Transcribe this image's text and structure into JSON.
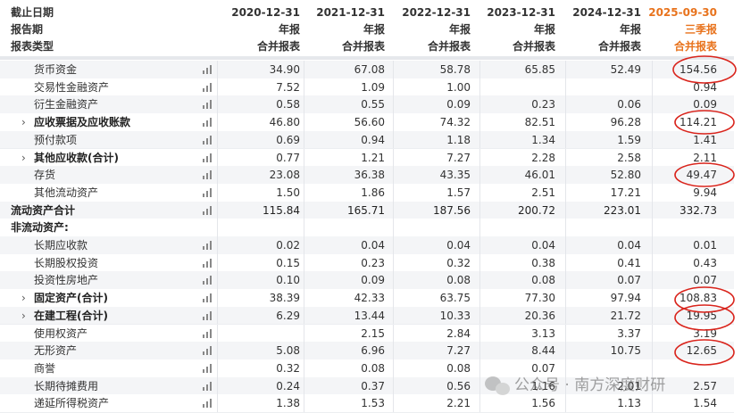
{
  "header": {
    "labels": [
      "截止日期",
      "报告期",
      "报表类型"
    ],
    "columns": [
      {
        "date": "2020-12-31",
        "period": "年报",
        "type": "合并报表"
      },
      {
        "date": "2021-12-31",
        "period": "年报",
        "type": "合并报表"
      },
      {
        "date": "2022-12-31",
        "period": "年报",
        "type": "合并报表"
      },
      {
        "date": "2023-12-31",
        "period": "年报",
        "type": "合并报表"
      },
      {
        "date": "2024-12-31",
        "period": "年报",
        "type": "合并报表"
      },
      {
        "date": "2025-09-30",
        "period": "三季报",
        "type": "合并报表"
      }
    ]
  },
  "table": {
    "rows": [
      {
        "label": "货币资金",
        "values": [
          "34.90",
          "67.08",
          "58.78",
          "65.85",
          "52.49",
          "154.56"
        ]
      },
      {
        "label": "交易性金融资产",
        "values": [
          "7.52",
          "1.09",
          "1.00",
          null,
          null,
          "0.94"
        ]
      },
      {
        "label": "衍生金融资产",
        "values": [
          "0.58",
          "0.55",
          "0.09",
          "0.23",
          "0.06",
          "0.09"
        ]
      },
      {
        "label": "应收票据及应收账款",
        "values": [
          "46.80",
          "56.60",
          "74.32",
          "82.51",
          "96.28",
          "114.21"
        ]
      },
      {
        "label": "预付款项",
        "values": [
          "0.69",
          "0.94",
          "1.18",
          "1.34",
          "1.59",
          "1.41"
        ]
      },
      {
        "label": "其他应收款(合计)",
        "values": [
          "0.77",
          "1.21",
          "7.27",
          "2.28",
          "2.58",
          "2.11"
        ]
      },
      {
        "label": "存货",
        "values": [
          "23.08",
          "36.38",
          "43.35",
          "46.01",
          "52.80",
          "49.47"
        ]
      },
      {
        "label": "其他流动资产",
        "values": [
          "1.50",
          "1.86",
          "1.57",
          "2.51",
          "17.21",
          "9.94"
        ]
      },
      {
        "label": "流动资产合计",
        "values": [
          "115.84",
          "165.71",
          "187.56",
          "200.72",
          "223.01",
          "332.73"
        ]
      },
      {
        "label": "非流动资产:",
        "values": [
          null,
          null,
          null,
          null,
          null,
          null
        ]
      },
      {
        "label": "长期应收款",
        "values": [
          "0.02",
          "0.04",
          "0.04",
          "0.04",
          "0.04",
          "0.01"
        ]
      },
      {
        "label": "长期股权投资",
        "values": [
          "0.15",
          "0.23",
          "0.32",
          "0.38",
          "0.41",
          "0.43"
        ]
      },
      {
        "label": "投资性房地产",
        "values": [
          "0.10",
          "0.09",
          "0.08",
          "0.08",
          "0.07",
          "0.07"
        ]
      },
      {
        "label": "固定资产(合计)",
        "values": [
          "38.39",
          "42.33",
          "63.75",
          "77.30",
          "97.94",
          "108.83"
        ]
      },
      {
        "label": "在建工程(合计)",
        "values": [
          "6.29",
          "13.44",
          "10.33",
          "20.36",
          "21.72",
          "19.95"
        ]
      },
      {
        "label": "使用权资产",
        "values": [
          null,
          "2.15",
          "2.84",
          "3.13",
          "3.37",
          "3.19"
        ]
      },
      {
        "label": "无形资产",
        "values": [
          "5.08",
          "6.96",
          "7.27",
          "8.44",
          "10.75",
          "12.65"
        ]
      },
      {
        "label": "商誉",
        "values": [
          "0.32",
          "0.08",
          "0.08",
          "0.07",
          null,
          null
        ]
      },
      {
        "label": "长期待摊费用",
        "values": [
          "0.24",
          "0.37",
          "0.56",
          "1.16",
          "2.01",
          "2.57"
        ]
      },
      {
        "label": "递延所得税资产",
        "values": [
          "1.38",
          "1.53",
          "2.21",
          "1.56",
          "1.13",
          "1.54"
        ]
      }
    ]
  },
  "watermark": "公众号 · 南方深度财研"
}
